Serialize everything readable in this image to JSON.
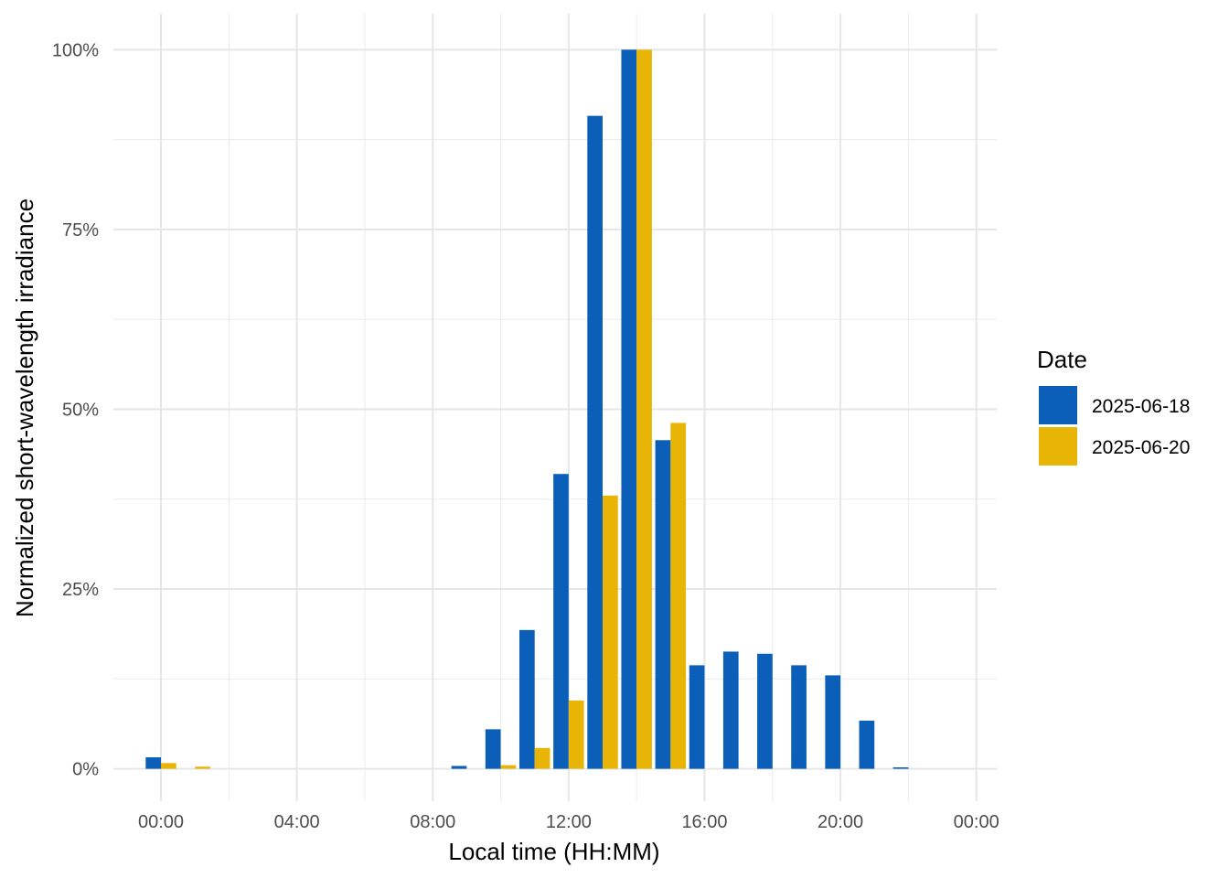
{
  "chart_data": {
    "type": "bar",
    "title": "",
    "xlabel": "Local time (HH:MM)",
    "ylabel": "Normalized short-wavelength irradiance",
    "x_ticks": [
      "00:00",
      "04:00",
      "08:00",
      "12:00",
      "16:00",
      "20:00",
      "00:00"
    ],
    "y_ticks": [
      "0%",
      "25%",
      "50%",
      "75%",
      "100%"
    ],
    "x_range_hours": [
      -1.4,
      24.6
    ],
    "ylim": [
      -0.045,
      1.05
    ],
    "grid": true,
    "legend": {
      "title": "Date",
      "position": "right"
    },
    "x_hours": [
      0,
      1,
      2,
      3,
      4,
      5,
      6,
      7,
      8,
      9,
      10,
      11,
      12,
      13,
      14,
      15,
      16,
      17,
      18,
      19,
      20,
      21,
      22,
      23
    ],
    "series": [
      {
        "name": "2025-06-18",
        "color": "#0C5FB9",
        "values": [
          0.016,
          0,
          0,
          0,
          0,
          0,
          0,
          0,
          0,
          0.004,
          0.055,
          0.193,
          0.41,
          0.908,
          1.0,
          0.457,
          0.144,
          0.163,
          0.16,
          0.144,
          0.13,
          0.067,
          0.002,
          0
        ]
      },
      {
        "name": "2025-06-20",
        "color": "#E8B405",
        "values": [
          0.008,
          0.003,
          0,
          0,
          0,
          0,
          0,
          0,
          0,
          0,
          0.005,
          0.029,
          0.095,
          0.38,
          1.0,
          0.481,
          0,
          0,
          0,
          0,
          0,
          0,
          0,
          0
        ]
      }
    ]
  }
}
